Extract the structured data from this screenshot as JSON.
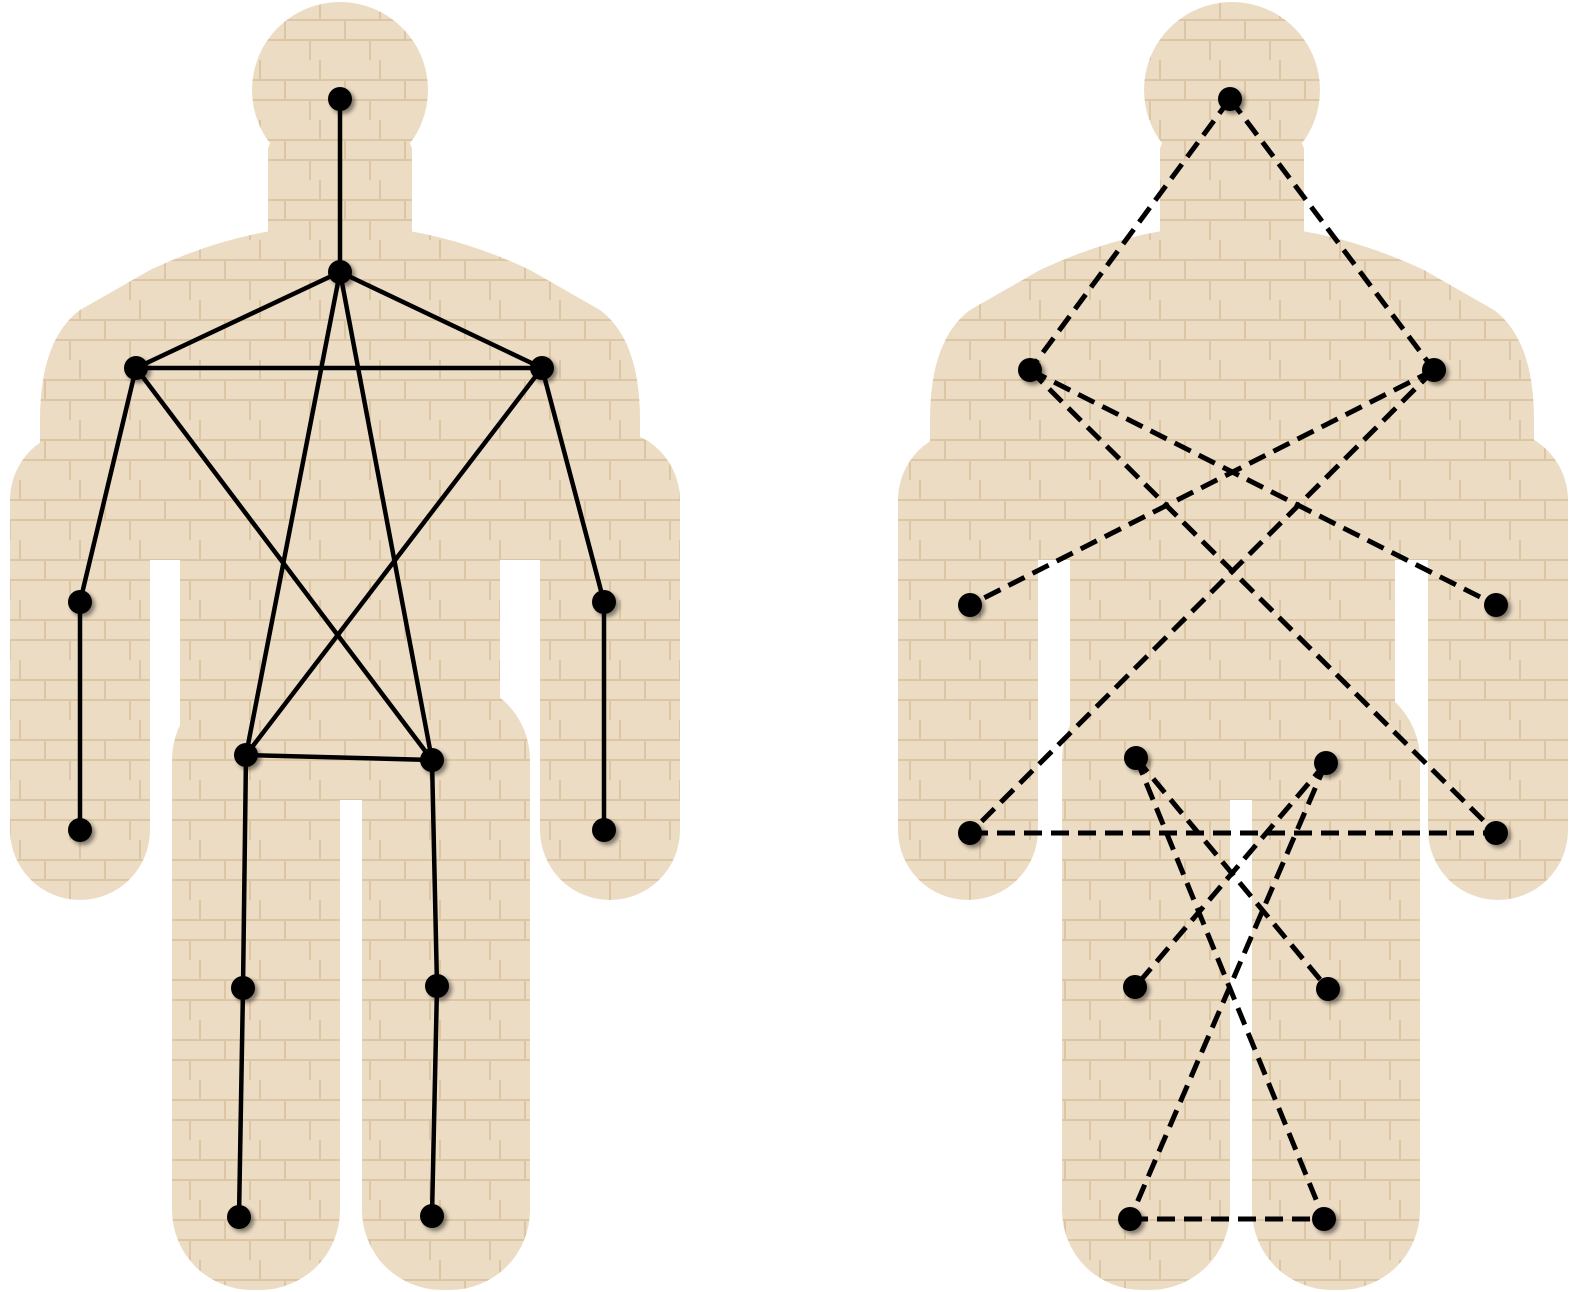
{
  "figures": [
    {
      "id": "left",
      "style": "solid",
      "joints": [
        {
          "name": "head"
        },
        {
          "name": "neck"
        },
        {
          "name": "right-shoulder"
        },
        {
          "name": "left-shoulder"
        },
        {
          "name": "right-elbow"
        },
        {
          "name": "left-elbow"
        },
        {
          "name": "right-wrist"
        },
        {
          "name": "left-wrist"
        },
        {
          "name": "right-hip"
        },
        {
          "name": "left-hip"
        },
        {
          "name": "right-knee"
        },
        {
          "name": "left-knee"
        },
        {
          "name": "right-ankle"
        },
        {
          "name": "left-ankle"
        }
      ],
      "edges": [
        [
          "head",
          "neck"
        ],
        [
          "neck",
          "right-shoulder"
        ],
        [
          "neck",
          "left-shoulder"
        ],
        [
          "right-shoulder",
          "left-shoulder"
        ],
        [
          "neck",
          "right-hip"
        ],
        [
          "neck",
          "left-hip"
        ],
        [
          "right-shoulder",
          "left-hip"
        ],
        [
          "left-shoulder",
          "right-hip"
        ],
        [
          "right-hip",
          "left-hip"
        ],
        [
          "right-shoulder",
          "right-elbow"
        ],
        [
          "right-elbow",
          "right-wrist"
        ],
        [
          "left-shoulder",
          "left-elbow"
        ],
        [
          "left-elbow",
          "left-wrist"
        ],
        [
          "right-hip",
          "right-knee"
        ],
        [
          "right-knee",
          "right-ankle"
        ],
        [
          "left-hip",
          "left-knee"
        ],
        [
          "left-knee",
          "left-ankle"
        ]
      ]
    },
    {
      "id": "right",
      "style": "dashed",
      "joints": [
        {
          "name": "head"
        },
        {
          "name": "right-shoulder"
        },
        {
          "name": "left-shoulder"
        },
        {
          "name": "right-elbow"
        },
        {
          "name": "left-elbow"
        },
        {
          "name": "right-wrist"
        },
        {
          "name": "left-wrist"
        },
        {
          "name": "right-hip"
        },
        {
          "name": "left-hip"
        },
        {
          "name": "right-knee"
        },
        {
          "name": "left-knee"
        },
        {
          "name": "right-ankle"
        },
        {
          "name": "left-ankle"
        }
      ],
      "edges": [
        [
          "head",
          "right-shoulder"
        ],
        [
          "head",
          "left-shoulder"
        ],
        [
          "right-shoulder",
          "left-elbow"
        ],
        [
          "left-shoulder",
          "right-elbow"
        ],
        [
          "right-shoulder",
          "left-wrist"
        ],
        [
          "left-shoulder",
          "right-wrist"
        ],
        [
          "right-wrist",
          "left-wrist"
        ],
        [
          "right-hip",
          "left-knee"
        ],
        [
          "left-hip",
          "right-knee"
        ],
        [
          "right-hip",
          "left-ankle"
        ],
        [
          "left-hip",
          "right-ankle"
        ],
        [
          "right-ankle",
          "left-ankle"
        ]
      ]
    }
  ],
  "colors": {
    "body_fill": "#ecdcc4",
    "body_shade": "#dfcaa9",
    "line": "#000000"
  }
}
